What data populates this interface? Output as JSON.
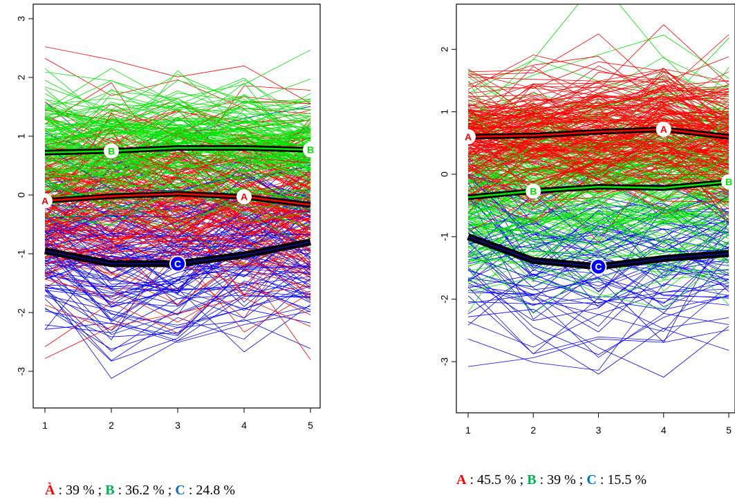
{
  "colors": {
    "A": "#ff0000",
    "B": "#00e600",
    "C": "#0000ff"
  },
  "chart_data": [
    {
      "type": "line",
      "title": "",
      "xlabel": "",
      "ylabel": "",
      "x": [
        1,
        2,
        3,
        4,
        5
      ],
      "xticks": [
        "1",
        "2",
        "3",
        "4",
        "5"
      ],
      "yticks": [
        "3",
        "2",
        "1",
        "0",
        "-1",
        "-2",
        "-3"
      ],
      "xlim": [
        0.96,
        5.04
      ],
      "ylim": [
        -3.55,
        3.22
      ],
      "series": [
        {
          "name": "A",
          "color": "#ff0000",
          "mean": [
            -0.1,
            -0.02,
            0.02,
            -0.03,
            -0.17
          ],
          "spread": 0.75,
          "count": 160
        },
        {
          "name": "B",
          "color": "#00e600",
          "mean": [
            0.72,
            0.75,
            0.8,
            0.8,
            0.77
          ],
          "spread": 0.55,
          "count": 150
        },
        {
          "name": "C",
          "color": "#0000ff",
          "mean": [
            -0.95,
            -1.17,
            -1.17,
            -1.02,
            -0.8
          ],
          "spread": 0.75,
          "count": 110
        }
      ],
      "caption": [
        {
          "letter": "À",
          "key": "A",
          "text": " : 39 % ; "
        },
        {
          "letter": "B",
          "key": "B",
          "text": " : 36.2 % ; "
        },
        {
          "letter": "C",
          "key": "C",
          "text": " : 24.8 %"
        }
      ]
    },
    {
      "type": "line",
      "title": "",
      "xlabel": "",
      "ylabel": "",
      "x": [
        1,
        2,
        3,
        4,
        5
      ],
      "xticks": [
        "1",
        "2",
        "3",
        "4",
        "5"
      ],
      "yticks": [
        "2",
        "1",
        "0",
        "-1",
        "-2",
        "-3"
      ],
      "xlim": [
        0.97,
        5.03
      ],
      "ylim": [
        -3.75,
        2.5
      ],
      "series": [
        {
          "name": "A",
          "color": "#ff0000",
          "mean": [
            0.6,
            0.62,
            0.68,
            0.72,
            0.6
          ],
          "spread": 0.55,
          "count": 190
        },
        {
          "name": "B",
          "color": "#00e600",
          "mean": [
            -0.37,
            -0.27,
            -0.2,
            -0.22,
            -0.12
          ],
          "spread": 0.75,
          "count": 150
        },
        {
          "name": "C",
          "color": "#0000ff",
          "mean": [
            -1.0,
            -1.38,
            -1.48,
            -1.35,
            -1.27
          ],
          "spread": 0.75,
          "count": 70
        }
      ],
      "caption": [
        {
          "letter": "A",
          "key": "A",
          "text": " : 45.5 % ; "
        },
        {
          "letter": "B",
          "key": "B",
          "text": " : 39 % ; "
        },
        {
          "letter": "C",
          "key": "C",
          "text": " : 15.5 %"
        }
      ]
    }
  ]
}
